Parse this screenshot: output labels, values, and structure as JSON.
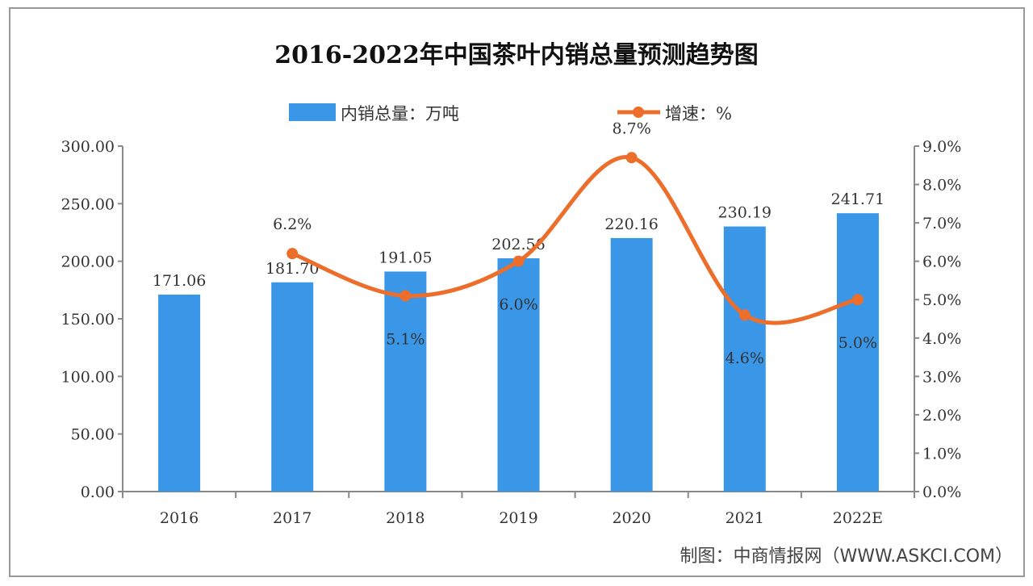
{
  "chart_data": {
    "type": "bar+line",
    "title": "2016-2022年中国茶叶内销总量预测趋势图",
    "categories": [
      "2016",
      "2017",
      "2018",
      "2019",
      "2020",
      "2021",
      "2022E"
    ],
    "series": [
      {
        "name": "内销总量：万吨",
        "type": "bar",
        "axis": "left",
        "color": "#3a96e6",
        "values": [
          171.06,
          181.7,
          191.05,
          202.56,
          220.16,
          230.19,
          241.71
        ],
        "labels": [
          "171.06",
          "181.70",
          "191.05",
          "202.56",
          "220.16",
          "230.19",
          "241.71"
        ]
      },
      {
        "name": "增速：%",
        "type": "line",
        "axis": "right",
        "color": "#ed6d2b",
        "values": [
          null,
          6.2,
          5.1,
          6.0,
          8.7,
          4.6,
          5.0
        ],
        "labels": [
          "",
          "6.2%",
          "5.1%",
          "6.0%",
          "8.7%",
          "4.6%",
          "5.0%"
        ],
        "label_positions": [
          "",
          "above",
          "below",
          "below",
          "above",
          "below",
          "below"
        ]
      }
    ],
    "y_left": {
      "range": [
        0,
        300
      ],
      "ticks": [
        "0.00",
        "50.00",
        "100.00",
        "150.00",
        "200.00",
        "250.00",
        "300.00"
      ]
    },
    "y_right": {
      "range": [
        0,
        9
      ],
      "ticks": [
        "0.0%",
        "1.0%",
        "2.0%",
        "3.0%",
        "4.0%",
        "5.0%",
        "6.0%",
        "7.0%",
        "8.0%",
        "9.0%"
      ]
    },
    "grid": false,
    "legend_placement": "top-center",
    "source": "制图：中商情报网（WWW.ASKCI.COM）"
  }
}
